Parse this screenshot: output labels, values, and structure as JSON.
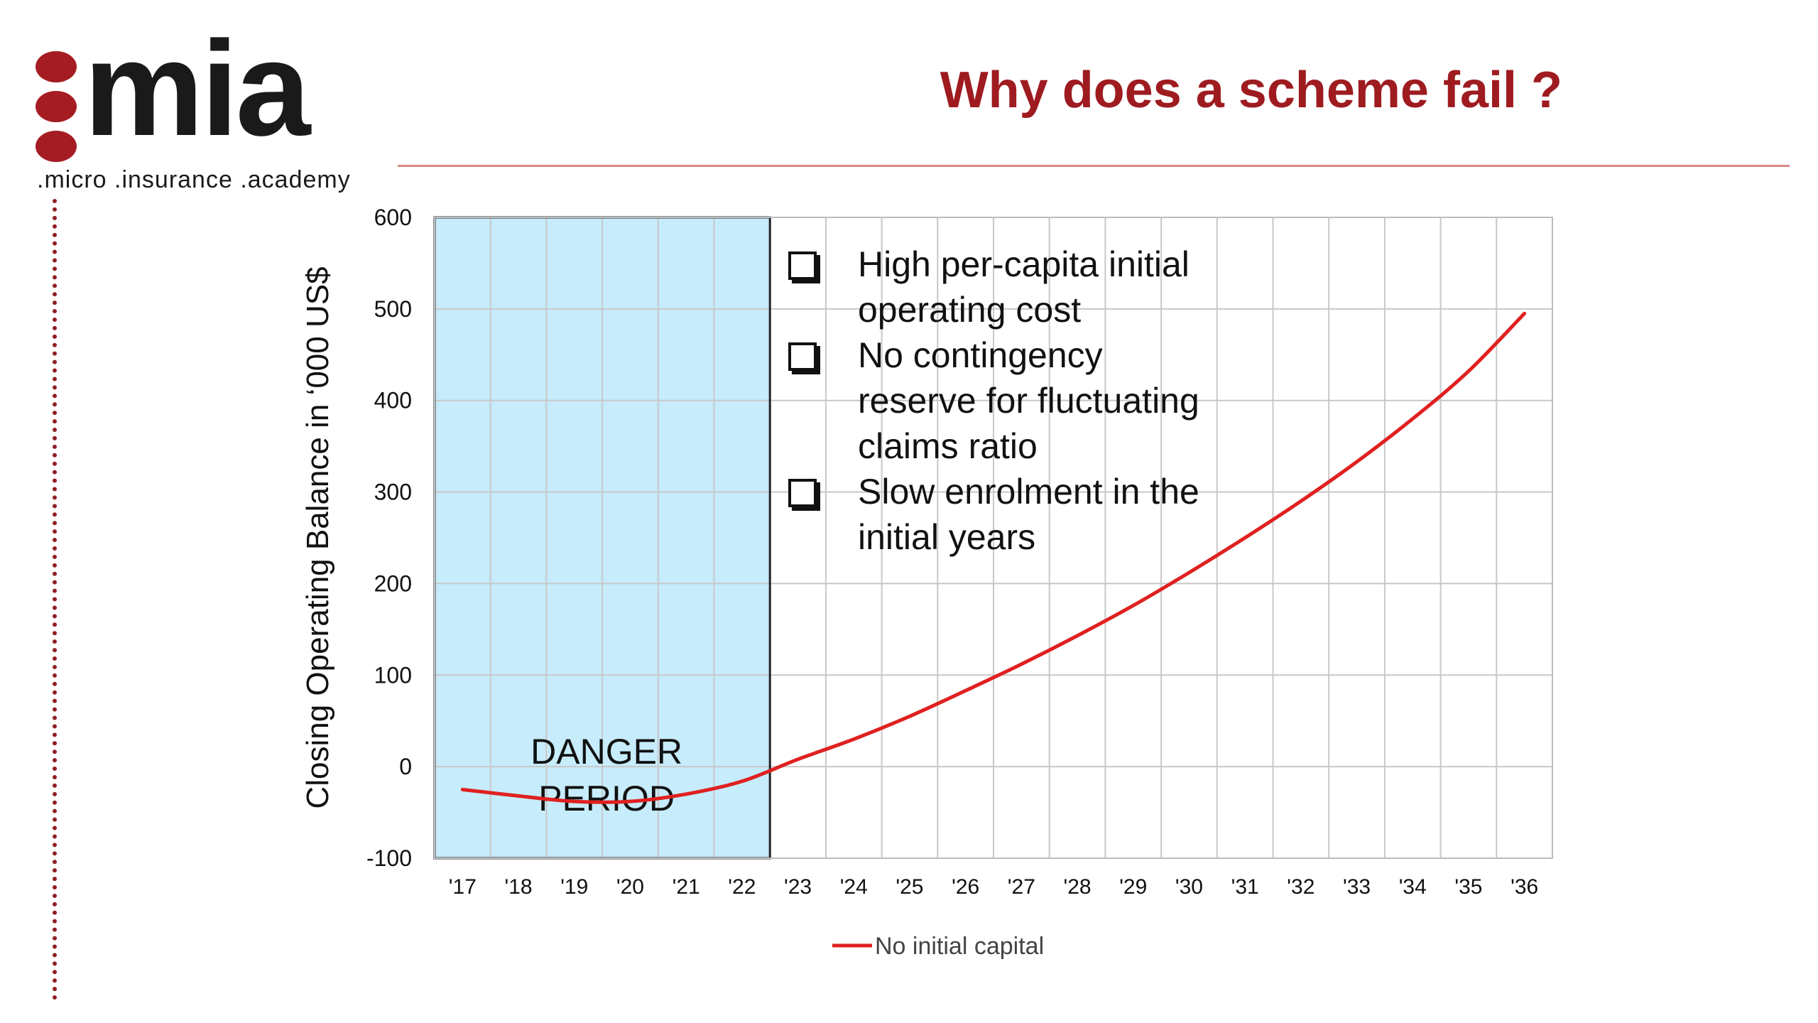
{
  "logo": {
    "word": "mia",
    "tagline": ".micro .insurance .academy"
  },
  "slide_title": "Why does a scheme fail ?",
  "bullets": [
    "High per-capita initial operating cost",
    "No contingency reserve for fluctuating claims ratio",
    "Slow enrolment in the initial years"
  ],
  "colors": {
    "brand_red": "#9e1b20",
    "series_line": "#e02020",
    "danger_fill": "#c7ecfb"
  },
  "chart_data": {
    "type": "line",
    "title": "",
    "xlabel": "",
    "ylabel": "Closing Operating Balance in ‘000 US$",
    "categories": [
      "'17",
      "'18",
      "'19",
      "'20",
      "'21",
      "'22",
      "'23",
      "'24",
      "'25",
      "'26",
      "'27",
      "'28",
      "'29",
      "'30",
      "'31",
      "'32",
      "'33",
      "'34",
      "'35",
      "'36"
    ],
    "ylim": [
      -100,
      600
    ],
    "yticks": [
      -100,
      0,
      100,
      200,
      300,
      400,
      500,
      600
    ],
    "grid": true,
    "series": [
      {
        "name": "No initial capital",
        "values": [
          -25,
          -32,
          -38,
          -38,
          -30,
          -16,
          8,
          30,
          55,
          83,
          112,
          143,
          176,
          212,
          250,
          290,
          333,
          380,
          432,
          495
        ]
      }
    ],
    "legend_position": "bottom",
    "shaded_region": {
      "from": "'17",
      "to": "'22",
      "label": "DANGER PERIOD",
      "line1": "DANGER",
      "line2": "PERIOD"
    }
  }
}
